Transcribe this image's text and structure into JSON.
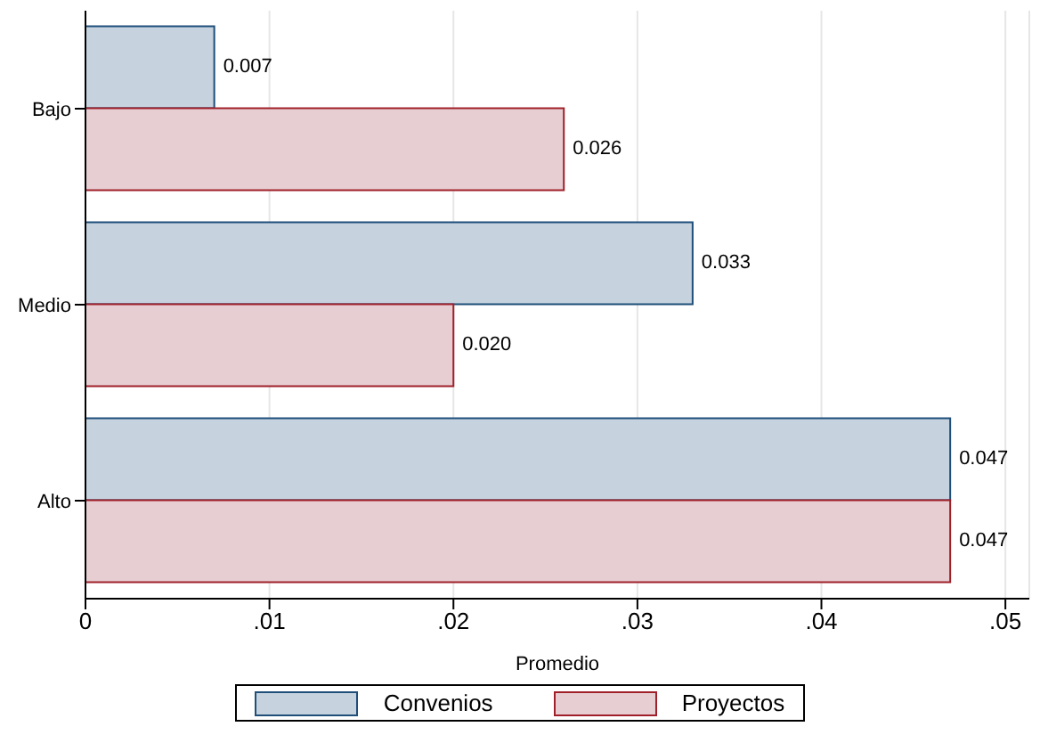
{
  "chart_data": {
    "type": "bar",
    "orientation": "horizontal",
    "xlabel": "Promedio",
    "categories": [
      "Bajo",
      "Medio",
      "Alto"
    ],
    "series": [
      {
        "name": "Convenios",
        "color": "#c6d3df",
        "values": [
          0.007,
          0.033,
          0.047
        ],
        "value_labels": [
          "0.007",
          "0.033",
          "0.047"
        ]
      },
      {
        "name": "Proyectos",
        "color": "#e6ced2",
        "values": [
          0.026,
          0.02,
          0.047
        ],
        "value_labels": [
          "0.026",
          "0.020",
          "0.047"
        ]
      }
    ],
    "xlim": [
      0,
      0.0513
    ],
    "xticks": [
      0,
      {
        "value": 0.01,
        "label": ".01"
      },
      {
        "value": 0.02,
        "label": ".02"
      },
      {
        "value": 0.03,
        "label": ".03"
      },
      {
        "value": 0.04,
        "label": ".04"
      },
      {
        "value": 0.05,
        "label": ".05"
      }
    ],
    "grid": "x",
    "legend": "bottom"
  }
}
